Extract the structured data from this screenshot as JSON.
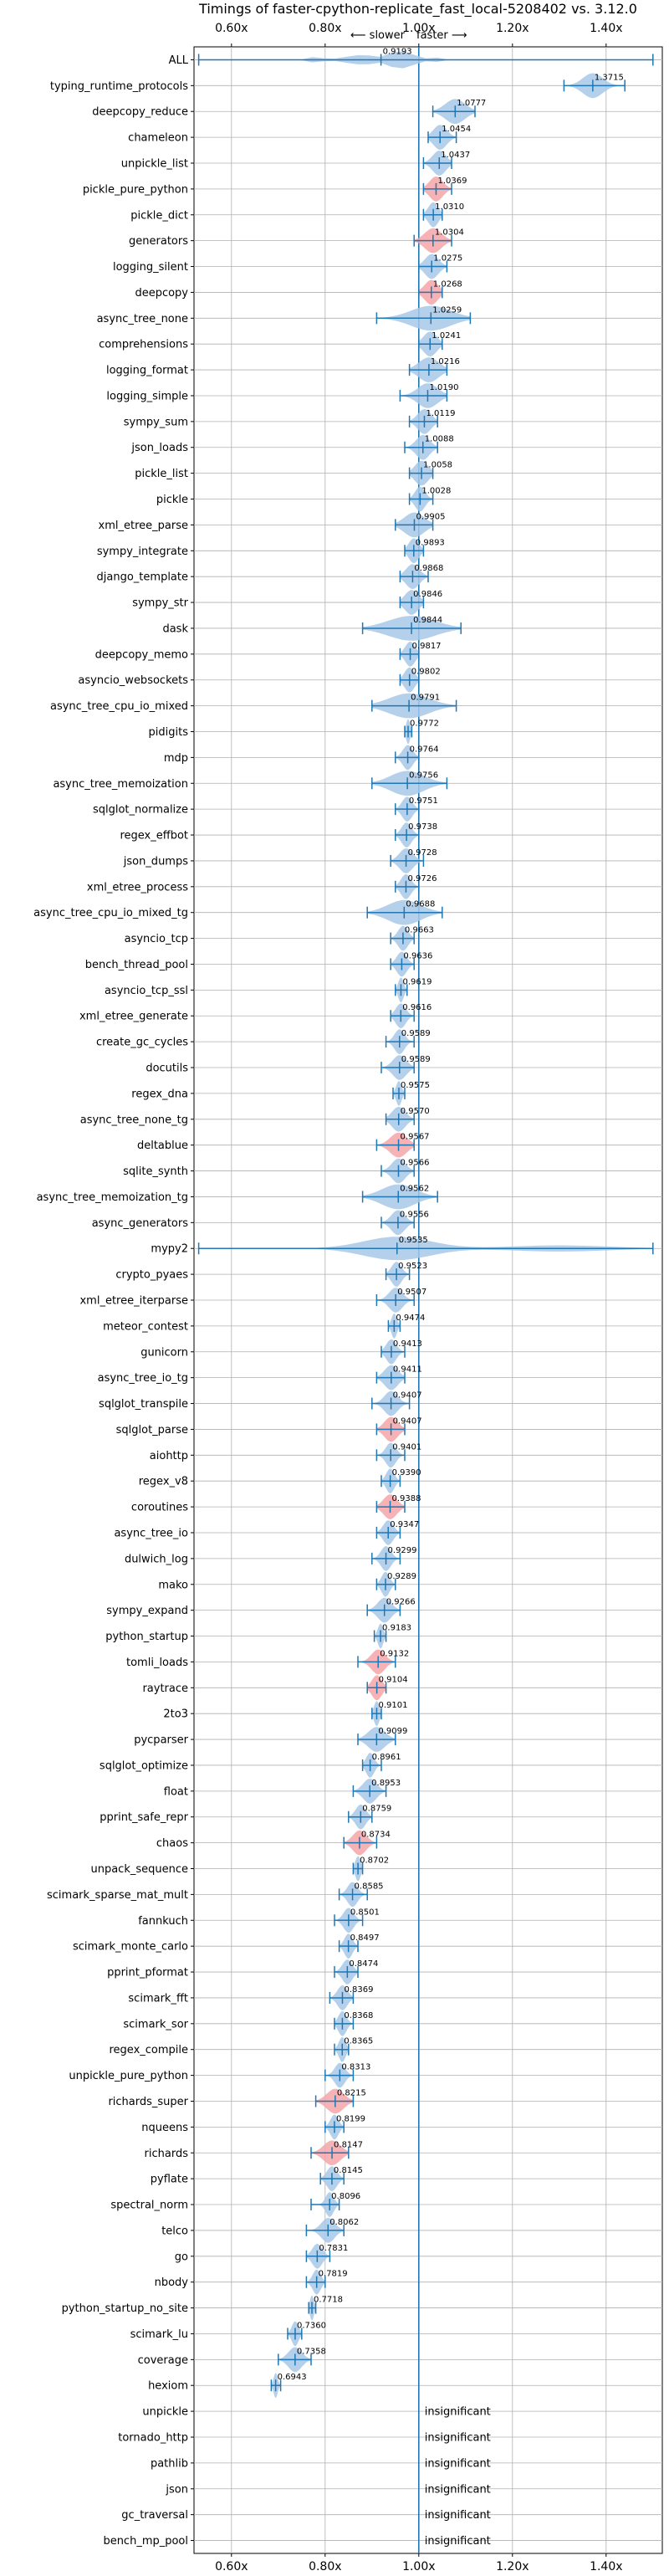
{
  "chart_data": {
    "type": "violin",
    "title": "Timings of faster-cpython-replicate_fast_local-5208402 vs. 3.12.0",
    "direction_slower": "⟵ slower",
    "direction_faster": "faster ⟶",
    "xlim": [
      0.52,
      1.52
    ],
    "xticks": [
      0.6,
      0.8,
      1.0,
      1.2,
      1.4
    ],
    "xtick_labels": [
      "0.60x",
      "0.80x",
      "1.00x",
      "1.20x",
      "1.40x"
    ],
    "grid": true,
    "reference_line": 1.0,
    "insignificant_label": "insignificant",
    "benchmarks": [
      {
        "name": "ALL",
        "value": 0.9193,
        "label": "0.9193",
        "lo": 0.53,
        "hi": 1.5,
        "spread": 0.15,
        "color": "blue",
        "kind": "all"
      },
      {
        "name": "typing_runtime_protocols",
        "value": 1.3715,
        "label": "1.3715",
        "lo": 1.31,
        "hi": 1.44,
        "spread": 0.03,
        "color": "blue"
      },
      {
        "name": "deepcopy_reduce",
        "value": 1.0777,
        "label": "1.0777",
        "lo": 1.03,
        "hi": 1.12,
        "spread": 0.03,
        "color": "blue"
      },
      {
        "name": "chameleon",
        "value": 1.0454,
        "label": "1.0454",
        "lo": 1.02,
        "hi": 1.08,
        "spread": 0.02,
        "color": "blue"
      },
      {
        "name": "unpickle_list",
        "value": 1.0437,
        "label": "1.0437",
        "lo": 1.01,
        "hi": 1.07,
        "spread": 0.02,
        "color": "blue"
      },
      {
        "name": "pickle_pure_python",
        "value": 1.0369,
        "label": "1.0369",
        "lo": 1.01,
        "hi": 1.07,
        "spread": 0.02,
        "color": "red"
      },
      {
        "name": "pickle_dict",
        "value": 1.031,
        "label": "1.0310",
        "lo": 1.01,
        "hi": 1.05,
        "spread": 0.015,
        "color": "blue"
      },
      {
        "name": "generators",
        "value": 1.0304,
        "label": "1.0304",
        "lo": 0.99,
        "hi": 1.07,
        "spread": 0.025,
        "color": "red"
      },
      {
        "name": "logging_silent",
        "value": 1.0275,
        "label": "1.0275",
        "lo": 1.0,
        "hi": 1.06,
        "spread": 0.02,
        "color": "blue"
      },
      {
        "name": "deepcopy",
        "value": 1.0268,
        "label": "1.0268",
        "lo": 1.0,
        "hi": 1.05,
        "spread": 0.02,
        "color": "red"
      },
      {
        "name": "async_tree_none",
        "value": 1.0259,
        "label": "1.0259",
        "lo": 0.91,
        "hi": 1.11,
        "spread": 0.06,
        "color": "blue"
      },
      {
        "name": "comprehensions",
        "value": 1.0241,
        "label": "1.0241",
        "lo": 1.0,
        "hi": 1.05,
        "spread": 0.02,
        "color": "blue"
      },
      {
        "name": "logging_format",
        "value": 1.0216,
        "label": "1.0216",
        "lo": 0.98,
        "hi": 1.06,
        "spread": 0.03,
        "color": "blue"
      },
      {
        "name": "logging_simple",
        "value": 1.019,
        "label": "1.0190",
        "lo": 0.96,
        "hi": 1.06,
        "spread": 0.03,
        "color": "blue"
      },
      {
        "name": "sympy_sum",
        "value": 1.0119,
        "label": "1.0119",
        "lo": 0.98,
        "hi": 1.04,
        "spread": 0.02,
        "color": "blue"
      },
      {
        "name": "json_loads",
        "value": 1.0088,
        "label": "1.0088",
        "lo": 0.97,
        "hi": 1.04,
        "spread": 0.02,
        "color": "blue"
      },
      {
        "name": "pickle_list",
        "value": 1.0058,
        "label": "1.0058",
        "lo": 0.98,
        "hi": 1.03,
        "spread": 0.02,
        "color": "blue"
      },
      {
        "name": "pickle",
        "value": 1.0028,
        "label": "1.0028",
        "lo": 0.98,
        "hi": 1.03,
        "spread": 0.015,
        "color": "blue"
      },
      {
        "name": "xml_etree_parse",
        "value": 0.9905,
        "label": "0.9905",
        "lo": 0.95,
        "hi": 1.03,
        "spread": 0.03,
        "color": "blue"
      },
      {
        "name": "sympy_integrate",
        "value": 0.9893,
        "label": "0.9893",
        "lo": 0.97,
        "hi": 1.01,
        "spread": 0.015,
        "color": "blue"
      },
      {
        "name": "django_template",
        "value": 0.9868,
        "label": "0.9868",
        "lo": 0.96,
        "hi": 1.02,
        "spread": 0.02,
        "color": "blue"
      },
      {
        "name": "sympy_str",
        "value": 0.9846,
        "label": "0.9846",
        "lo": 0.96,
        "hi": 1.01,
        "spread": 0.02,
        "color": "blue"
      },
      {
        "name": "dask",
        "value": 0.9844,
        "label": "0.9844",
        "lo": 0.88,
        "hi": 1.09,
        "spread": 0.07,
        "color": "blue"
      },
      {
        "name": "deepcopy_memo",
        "value": 0.9817,
        "label": "0.9817",
        "lo": 0.96,
        "hi": 1.0,
        "spread": 0.015,
        "color": "blue"
      },
      {
        "name": "asyncio_websockets",
        "value": 0.9802,
        "label": "0.9802",
        "lo": 0.96,
        "hi": 1.0,
        "spread": 0.015,
        "color": "blue"
      },
      {
        "name": "async_tree_cpu_io_mixed",
        "value": 0.9791,
        "label": "0.9791",
        "lo": 0.9,
        "hi": 1.08,
        "spread": 0.06,
        "color": "blue"
      },
      {
        "name": "pidigits",
        "value": 0.9772,
        "label": "0.9772",
        "lo": 0.97,
        "hi": 0.985,
        "spread": 0.006,
        "color": "blue"
      },
      {
        "name": "mdp",
        "value": 0.9764,
        "label": "0.9764",
        "lo": 0.95,
        "hi": 1.0,
        "spread": 0.015,
        "color": "blue"
      },
      {
        "name": "async_tree_memoization",
        "value": 0.9756,
        "label": "0.9756",
        "lo": 0.9,
        "hi": 1.06,
        "spread": 0.05,
        "color": "blue"
      },
      {
        "name": "sqlglot_normalize",
        "value": 0.9751,
        "label": "0.9751",
        "lo": 0.95,
        "hi": 1.0,
        "spread": 0.015,
        "color": "blue"
      },
      {
        "name": "regex_effbot",
        "value": 0.9738,
        "label": "0.9738",
        "lo": 0.95,
        "hi": 1.0,
        "spread": 0.015,
        "color": "blue"
      },
      {
        "name": "json_dumps",
        "value": 0.9728,
        "label": "0.9728",
        "lo": 0.94,
        "hi": 1.01,
        "spread": 0.02,
        "color": "blue"
      },
      {
        "name": "xml_etree_process",
        "value": 0.9726,
        "label": "0.9726",
        "lo": 0.95,
        "hi": 1.0,
        "spread": 0.015,
        "color": "blue"
      },
      {
        "name": "async_tree_cpu_io_mixed_tg",
        "value": 0.9688,
        "label": "0.9688",
        "lo": 0.89,
        "hi": 1.05,
        "spread": 0.05,
        "color": "blue"
      },
      {
        "name": "asyncio_tcp",
        "value": 0.9663,
        "label": "0.9663",
        "lo": 0.94,
        "hi": 0.99,
        "spread": 0.015,
        "color": "blue"
      },
      {
        "name": "bench_thread_pool",
        "value": 0.9636,
        "label": "0.9636",
        "lo": 0.94,
        "hi": 0.99,
        "spread": 0.015,
        "color": "blue"
      },
      {
        "name": "asyncio_tcp_ssl",
        "value": 0.9619,
        "label": "0.9619",
        "lo": 0.95,
        "hi": 0.975,
        "spread": 0.008,
        "color": "blue"
      },
      {
        "name": "xml_etree_generate",
        "value": 0.9616,
        "label": "0.9616",
        "lo": 0.94,
        "hi": 0.99,
        "spread": 0.015,
        "color": "blue"
      },
      {
        "name": "create_gc_cycles",
        "value": 0.9589,
        "label": "0.9589",
        "lo": 0.93,
        "hi": 0.99,
        "spread": 0.015,
        "color": "blue"
      },
      {
        "name": "docutils",
        "value": 0.9589,
        "label": "0.9589",
        "lo": 0.92,
        "hi": 0.99,
        "spread": 0.02,
        "color": "blue"
      },
      {
        "name": "regex_dna",
        "value": 0.9575,
        "label": "0.9575",
        "lo": 0.945,
        "hi": 0.97,
        "spread": 0.008,
        "color": "blue"
      },
      {
        "name": "async_tree_none_tg",
        "value": 0.957,
        "label": "0.9570",
        "lo": 0.93,
        "hi": 0.99,
        "spread": 0.02,
        "color": "blue"
      },
      {
        "name": "deltablue",
        "value": 0.9567,
        "label": "0.9567",
        "lo": 0.91,
        "hi": 0.99,
        "spread": 0.025,
        "color": "red"
      },
      {
        "name": "sqlite_synth",
        "value": 0.9566,
        "label": "0.9566",
        "lo": 0.92,
        "hi": 0.99,
        "spread": 0.02,
        "color": "blue"
      },
      {
        "name": "async_tree_memoization_tg",
        "value": 0.9562,
        "label": "0.9562",
        "lo": 0.88,
        "hi": 1.04,
        "spread": 0.05,
        "color": "blue"
      },
      {
        "name": "async_generators",
        "value": 0.9556,
        "label": "0.9556",
        "lo": 0.92,
        "hi": 0.99,
        "spread": 0.02,
        "color": "blue"
      },
      {
        "name": "mypy2",
        "value": 0.9535,
        "label": "0.9535",
        "lo": 0.53,
        "hi": 1.5,
        "spread": 0.1,
        "color": "blue",
        "kind": "wide"
      },
      {
        "name": "crypto_pyaes",
        "value": 0.9523,
        "label": "0.9523",
        "lo": 0.93,
        "hi": 0.98,
        "spread": 0.015,
        "color": "blue"
      },
      {
        "name": "xml_etree_iterparse",
        "value": 0.9507,
        "label": "0.9507",
        "lo": 0.91,
        "hi": 0.99,
        "spread": 0.02,
        "color": "blue"
      },
      {
        "name": "meteor_contest",
        "value": 0.9474,
        "label": "0.9474",
        "lo": 0.935,
        "hi": 0.96,
        "spread": 0.008,
        "color": "blue"
      },
      {
        "name": "gunicorn",
        "value": 0.9413,
        "label": "0.9413",
        "lo": 0.92,
        "hi": 0.97,
        "spread": 0.015,
        "color": "blue"
      },
      {
        "name": "async_tree_io_tg",
        "value": 0.9411,
        "label": "0.9411",
        "lo": 0.91,
        "hi": 0.97,
        "spread": 0.02,
        "color": "blue"
      },
      {
        "name": "sqlglot_transpile",
        "value": 0.9407,
        "label": "0.9407",
        "lo": 0.9,
        "hi": 0.98,
        "spread": 0.02,
        "color": "blue"
      },
      {
        "name": "sqlglot_parse",
        "value": 0.9407,
        "label": "0.9407",
        "lo": 0.91,
        "hi": 0.97,
        "spread": 0.02,
        "color": "red"
      },
      {
        "name": "aiohttp",
        "value": 0.9401,
        "label": "0.9401",
        "lo": 0.91,
        "hi": 0.97,
        "spread": 0.015,
        "color": "blue"
      },
      {
        "name": "regex_v8",
        "value": 0.939,
        "label": "0.9390",
        "lo": 0.92,
        "hi": 0.96,
        "spread": 0.012,
        "color": "blue"
      },
      {
        "name": "coroutines",
        "value": 0.9388,
        "label": "0.9388",
        "lo": 0.91,
        "hi": 0.97,
        "spread": 0.02,
        "color": "red"
      },
      {
        "name": "async_tree_io",
        "value": 0.9347,
        "label": "0.9347",
        "lo": 0.91,
        "hi": 0.96,
        "spread": 0.015,
        "color": "blue"
      },
      {
        "name": "dulwich_log",
        "value": 0.9299,
        "label": "0.9299",
        "lo": 0.9,
        "hi": 0.96,
        "spread": 0.015,
        "color": "blue"
      },
      {
        "name": "mako",
        "value": 0.9289,
        "label": "0.9289",
        "lo": 0.91,
        "hi": 0.95,
        "spread": 0.012,
        "color": "blue"
      },
      {
        "name": "sympy_expand",
        "value": 0.9266,
        "label": "0.9266",
        "lo": 0.89,
        "hi": 0.96,
        "spread": 0.02,
        "color": "blue"
      },
      {
        "name": "python_startup",
        "value": 0.9183,
        "label": "0.9183",
        "lo": 0.905,
        "hi": 0.93,
        "spread": 0.008,
        "color": "blue"
      },
      {
        "name": "tomli_loads",
        "value": 0.9132,
        "label": "0.9132",
        "lo": 0.87,
        "hi": 0.95,
        "spread": 0.02,
        "color": "red"
      },
      {
        "name": "raytrace",
        "value": 0.9104,
        "label": "0.9104",
        "lo": 0.89,
        "hi": 0.93,
        "spread": 0.015,
        "color": "red"
      },
      {
        "name": "2to3",
        "value": 0.9101,
        "label": "0.9101",
        "lo": 0.9,
        "hi": 0.92,
        "spread": 0.008,
        "color": "blue"
      },
      {
        "name": "pycparser",
        "value": 0.9099,
        "label": "0.9099",
        "lo": 0.87,
        "hi": 0.95,
        "spread": 0.025,
        "color": "blue"
      },
      {
        "name": "sqlglot_optimize",
        "value": 0.8961,
        "label": "0.8961",
        "lo": 0.88,
        "hi": 0.92,
        "spread": 0.012,
        "color": "blue"
      },
      {
        "name": "float",
        "value": 0.8953,
        "label": "0.8953",
        "lo": 0.86,
        "hi": 0.93,
        "spread": 0.02,
        "color": "blue"
      },
      {
        "name": "pprint_safe_repr",
        "value": 0.8759,
        "label": "0.8759",
        "lo": 0.85,
        "hi": 0.9,
        "spread": 0.015,
        "color": "blue"
      },
      {
        "name": "chaos",
        "value": 0.8734,
        "label": "0.8734",
        "lo": 0.84,
        "hi": 0.91,
        "spread": 0.02,
        "color": "red"
      },
      {
        "name": "unpack_sequence",
        "value": 0.8702,
        "label": "0.8702",
        "lo": 0.86,
        "hi": 0.88,
        "spread": 0.008,
        "color": "blue"
      },
      {
        "name": "scimark_sparse_mat_mult",
        "value": 0.8585,
        "label": "0.8585",
        "lo": 0.83,
        "hi": 0.89,
        "spread": 0.015,
        "color": "blue"
      },
      {
        "name": "fannkuch",
        "value": 0.8501,
        "label": "0.8501",
        "lo": 0.82,
        "hi": 0.88,
        "spread": 0.015,
        "color": "blue"
      },
      {
        "name": "scimark_monte_carlo",
        "value": 0.8497,
        "label": "0.8497",
        "lo": 0.83,
        "hi": 0.87,
        "spread": 0.012,
        "color": "blue"
      },
      {
        "name": "pprint_pformat",
        "value": 0.8474,
        "label": "0.8474",
        "lo": 0.82,
        "hi": 0.87,
        "spread": 0.015,
        "color": "blue"
      },
      {
        "name": "scimark_fft",
        "value": 0.8369,
        "label": "0.8369",
        "lo": 0.81,
        "hi": 0.86,
        "spread": 0.015,
        "color": "blue"
      },
      {
        "name": "scimark_sor",
        "value": 0.8368,
        "label": "0.8368",
        "lo": 0.82,
        "hi": 0.86,
        "spread": 0.012,
        "color": "blue"
      },
      {
        "name": "regex_compile",
        "value": 0.8365,
        "label": "0.8365",
        "lo": 0.82,
        "hi": 0.85,
        "spread": 0.01,
        "color": "blue"
      },
      {
        "name": "unpickle_pure_python",
        "value": 0.8313,
        "label": "0.8313",
        "lo": 0.8,
        "hi": 0.86,
        "spread": 0.015,
        "color": "blue"
      },
      {
        "name": "richards_super",
        "value": 0.8215,
        "label": "0.8215",
        "lo": 0.78,
        "hi": 0.86,
        "spread": 0.025,
        "color": "red"
      },
      {
        "name": "nqueens",
        "value": 0.8199,
        "label": "0.8199",
        "lo": 0.8,
        "hi": 0.84,
        "spread": 0.012,
        "color": "blue"
      },
      {
        "name": "richards",
        "value": 0.8147,
        "label": "0.8147",
        "lo": 0.77,
        "hi": 0.85,
        "spread": 0.025,
        "color": "red"
      },
      {
        "name": "pyflate",
        "value": 0.8145,
        "label": "0.8145",
        "lo": 0.79,
        "hi": 0.84,
        "spread": 0.015,
        "color": "blue"
      },
      {
        "name": "spectral_norm",
        "value": 0.8096,
        "label": "0.8096",
        "lo": 0.77,
        "hi": 0.83,
        "spread": 0.012,
        "color": "blue"
      },
      {
        "name": "telco",
        "value": 0.8062,
        "label": "0.8062",
        "lo": 0.76,
        "hi": 0.84,
        "spread": 0.02,
        "color": "blue"
      },
      {
        "name": "go",
        "value": 0.7831,
        "label": "0.7831",
        "lo": 0.76,
        "hi": 0.81,
        "spread": 0.015,
        "color": "blue"
      },
      {
        "name": "nbody",
        "value": 0.7819,
        "label": "0.7819",
        "lo": 0.76,
        "hi": 0.8,
        "spread": 0.012,
        "color": "blue"
      },
      {
        "name": "python_startup_no_site",
        "value": 0.7718,
        "label": "0.7718",
        "lo": 0.765,
        "hi": 0.78,
        "spread": 0.006,
        "color": "blue"
      },
      {
        "name": "scimark_lu",
        "value": 0.736,
        "label": "0.7360",
        "lo": 0.72,
        "hi": 0.75,
        "spread": 0.01,
        "color": "blue"
      },
      {
        "name": "coverage",
        "value": 0.7358,
        "label": "0.7358",
        "lo": 0.7,
        "hi": 0.77,
        "spread": 0.02,
        "color": "blue"
      },
      {
        "name": "hexiom",
        "value": 0.6943,
        "label": "0.6943",
        "lo": 0.685,
        "hi": 0.705,
        "spread": 0.006,
        "color": "blue"
      },
      {
        "name": "unpickle",
        "insignificant": true
      },
      {
        "name": "tornado_http",
        "insignificant": true
      },
      {
        "name": "pathlib",
        "insignificant": true
      },
      {
        "name": "json",
        "insignificant": true
      },
      {
        "name": "gc_traversal",
        "insignificant": true
      },
      {
        "name": "bench_mp_pool",
        "insignificant": true
      }
    ]
  },
  "colors": {
    "line": "#1f77b4",
    "violin_blue": "#a8c8e8",
    "violin_red": "#f4a5a8",
    "grid": "#b0b0b0",
    "axis": "#000000"
  }
}
